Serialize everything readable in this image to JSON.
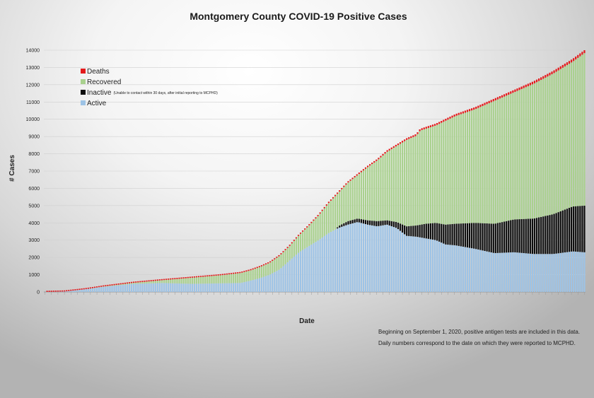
{
  "chart_data": {
    "type": "bar",
    "stacked": true,
    "title": "Montgomery County COVID-19 Positive Cases",
    "xlabel": "Date",
    "ylabel": "# Cases",
    "ylim": [
      0,
      14000
    ],
    "yticks": [
      0,
      1000,
      2000,
      3000,
      4000,
      5000,
      6000,
      7000,
      8000,
      9000,
      10000,
      11000,
      12000,
      13000,
      14000
    ],
    "grid": true,
    "legend_position": "top-left",
    "legend": [
      {
        "label": "Deaths",
        "note": "",
        "color": "#e31a1c"
      },
      {
        "label": "Recovered",
        "note": "",
        "color": "#a9d18e"
      },
      {
        "label": "Inactive",
        "note": "(Unable to contact within 30 days, after initial reporting to MCPHD)",
        "color": "#0d0d0d"
      },
      {
        "label": "Active",
        "note": "",
        "color": "#9dc3e6"
      }
    ],
    "num_days": 250,
    "total_cases_keyframes": [
      [
        0,
        0
      ],
      [
        10,
        30
      ],
      [
        20,
        160
      ],
      [
        30,
        340
      ],
      [
        45,
        560
      ],
      [
        60,
        720
      ],
      [
        75,
        870
      ],
      [
        90,
        1020
      ],
      [
        100,
        1150
      ],
      [
        105,
        1300
      ],
      [
        110,
        1500
      ],
      [
        115,
        1750
      ],
      [
        120,
        2150
      ],
      [
        125,
        2700
      ],
      [
        130,
        3350
      ],
      [
        135,
        3900
      ],
      [
        140,
        4500
      ],
      [
        145,
        5200
      ],
      [
        150,
        5800
      ],
      [
        155,
        6400
      ],
      [
        160,
        6850
      ],
      [
        165,
        7300
      ],
      [
        170,
        7700
      ],
      [
        175,
        8200
      ],
      [
        180,
        8550
      ],
      [
        185,
        8900
      ],
      [
        190,
        9150
      ],
      [
        192,
        9450
      ],
      [
        200,
        9750
      ],
      [
        210,
        10300
      ],
      [
        220,
        10700
      ],
      [
        230,
        11200
      ],
      [
        240,
        11700
      ],
      [
        250,
        12200
      ],
      [
        260,
        12800
      ],
      [
        270,
        13500
      ],
      [
        276,
        14000
      ]
    ],
    "active_keyframes": [
      [
        0,
        0
      ],
      [
        10,
        25
      ],
      [
        20,
        150
      ],
      [
        30,
        300
      ],
      [
        45,
        470
      ],
      [
        60,
        520
      ],
      [
        75,
        470
      ],
      [
        90,
        500
      ],
      [
        100,
        520
      ],
      [
        105,
        650
      ],
      [
        110,
        800
      ],
      [
        115,
        1000
      ],
      [
        120,
        1300
      ],
      [
        125,
        1800
      ],
      [
        130,
        2300
      ],
      [
        135,
        2650
      ],
      [
        140,
        3000
      ],
      [
        145,
        3400
      ],
      [
        150,
        3700
      ],
      [
        155,
        3900
      ],
      [
        160,
        4050
      ],
      [
        165,
        3900
      ],
      [
        170,
        3800
      ],
      [
        175,
        3900
      ],
      [
        180,
        3700
      ],
      [
        185,
        3250
      ],
      [
        190,
        3200
      ],
      [
        195,
        3100
      ],
      [
        200,
        3000
      ],
      [
        205,
        2750
      ],
      [
        210,
        2700
      ],
      [
        220,
        2500
      ],
      [
        230,
        2250
      ],
      [
        240,
        2300
      ],
      [
        250,
        2200
      ],
      [
        260,
        2200
      ],
      [
        270,
        2350
      ],
      [
        276,
        2300
      ]
    ],
    "inactive_keyframes": [
      [
        0,
        0
      ],
      [
        149,
        0
      ],
      [
        150,
        100
      ],
      [
        155,
        200
      ],
      [
        160,
        200
      ],
      [
        165,
        250
      ],
      [
        170,
        300
      ],
      [
        175,
        250
      ],
      [
        180,
        350
      ],
      [
        185,
        550
      ],
      [
        190,
        650
      ],
      [
        195,
        850
      ],
      [
        200,
        1000
      ],
      [
        205,
        1150
      ],
      [
        210,
        1250
      ],
      [
        220,
        1500
      ],
      [
        230,
        1700
      ],
      [
        240,
        1900
      ],
      [
        250,
        2050
      ],
      [
        260,
        2300
      ],
      [
        270,
        2600
      ],
      [
        276,
        2700
      ]
    ],
    "deaths_keyframes": [
      [
        0,
        0
      ],
      [
        40,
        30
      ],
      [
        80,
        50
      ],
      [
        120,
        60
      ],
      [
        160,
        80
      ],
      [
        200,
        110
      ],
      [
        240,
        140
      ],
      [
        276,
        170
      ]
    ],
    "notes": [
      "Beginning on September 1, 2020, positive antigen tests are included in this data.",
      "Daily numbers correspond to the date on which they were reported to MCPHD."
    ]
  }
}
